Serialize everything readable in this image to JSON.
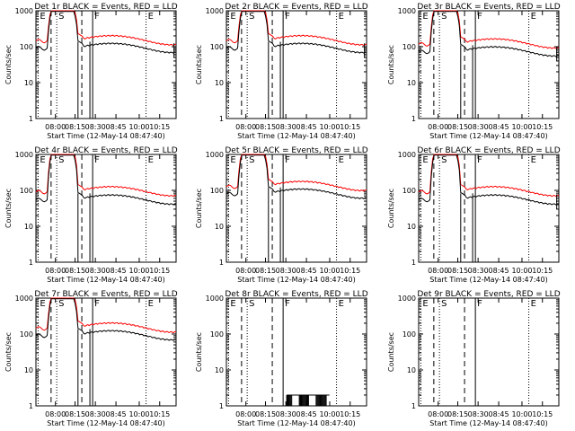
{
  "chart_data": [
    {
      "type": "line",
      "title": "Det 1r BLACK = Events, RED = LLD",
      "events": "std",
      "lld": "std",
      "ev_base": 125,
      "lld_base": 160,
      "end_drop": true
    },
    {
      "type": "line",
      "title": "Det 2r BLACK = Events, RED = LLD",
      "events": "std",
      "lld": "std",
      "ev_base": 125,
      "lld_base": 160,
      "end_drop": true
    },
    {
      "type": "line",
      "title": "Det 3r BLACK = Events, RED = LLD",
      "events": "std",
      "lld": "std",
      "ev_base": 100,
      "lld_base": 130,
      "end_drop": true
    },
    {
      "type": "line",
      "title": "Det 4r BLACK = Events, RED = LLD",
      "events": "std",
      "lld": "std",
      "ev_base": 75,
      "lld_base": 100,
      "end_drop": false
    },
    {
      "type": "line",
      "title": "Det 5r BLACK = Events, RED = LLD",
      "events": "std",
      "lld": "std",
      "ev_base": 110,
      "lld_base": 140,
      "end_drop": false
    },
    {
      "type": "line",
      "title": "Det 6r BLACK = Events, RED = LLD",
      "events": "std",
      "lld": "std",
      "ev_base": 75,
      "lld_base": 100,
      "end_drop": true
    },
    {
      "type": "line",
      "title": "Det 7r BLACK = Events, RED = LLD",
      "events": "std",
      "lld": "std",
      "ev_base": 125,
      "lld_base": 160,
      "end_drop": false
    },
    {
      "type": "line",
      "title": "Det 8r BLACK = Events, RED = LLD",
      "events": "spiky",
      "lld": "none"
    },
    {
      "type": "line",
      "title": "Det 9r BLACK = Events, RED = LLD",
      "events": "none",
      "lld": "none"
    }
  ],
  "common": {
    "xlabel": "Start Time (12-May-14 08:47:40)",
    "ylabel": "Counts/sec",
    "ylim": [
      1,
      1000
    ],
    "y_scale": "log",
    "xlim": [
      "07:51",
      "10:23"
    ],
    "x_ticks": [
      "08:00",
      "08:15",
      "08:30",
      "08:45",
      "10:00",
      "10:15"
    ],
    "y_ticks": [
      "1",
      "10",
      "100",
      "1000"
    ],
    "markers": [
      {
        "label": "E",
        "t": "07:52",
        "style": "dotted"
      },
      {
        "label": "S",
        "t": "08:01",
        "style": "dotted"
      },
      {
        "label": "F",
        "t": "08:28",
        "style": "solid"
      },
      {
        "label": "E",
        "t": "10:05",
        "style": "dotted"
      }
    ],
    "dashed_lines": [
      "07:58",
      "08:20"
    ],
    "black_color": "#000000",
    "red_color": "#ff0000"
  }
}
